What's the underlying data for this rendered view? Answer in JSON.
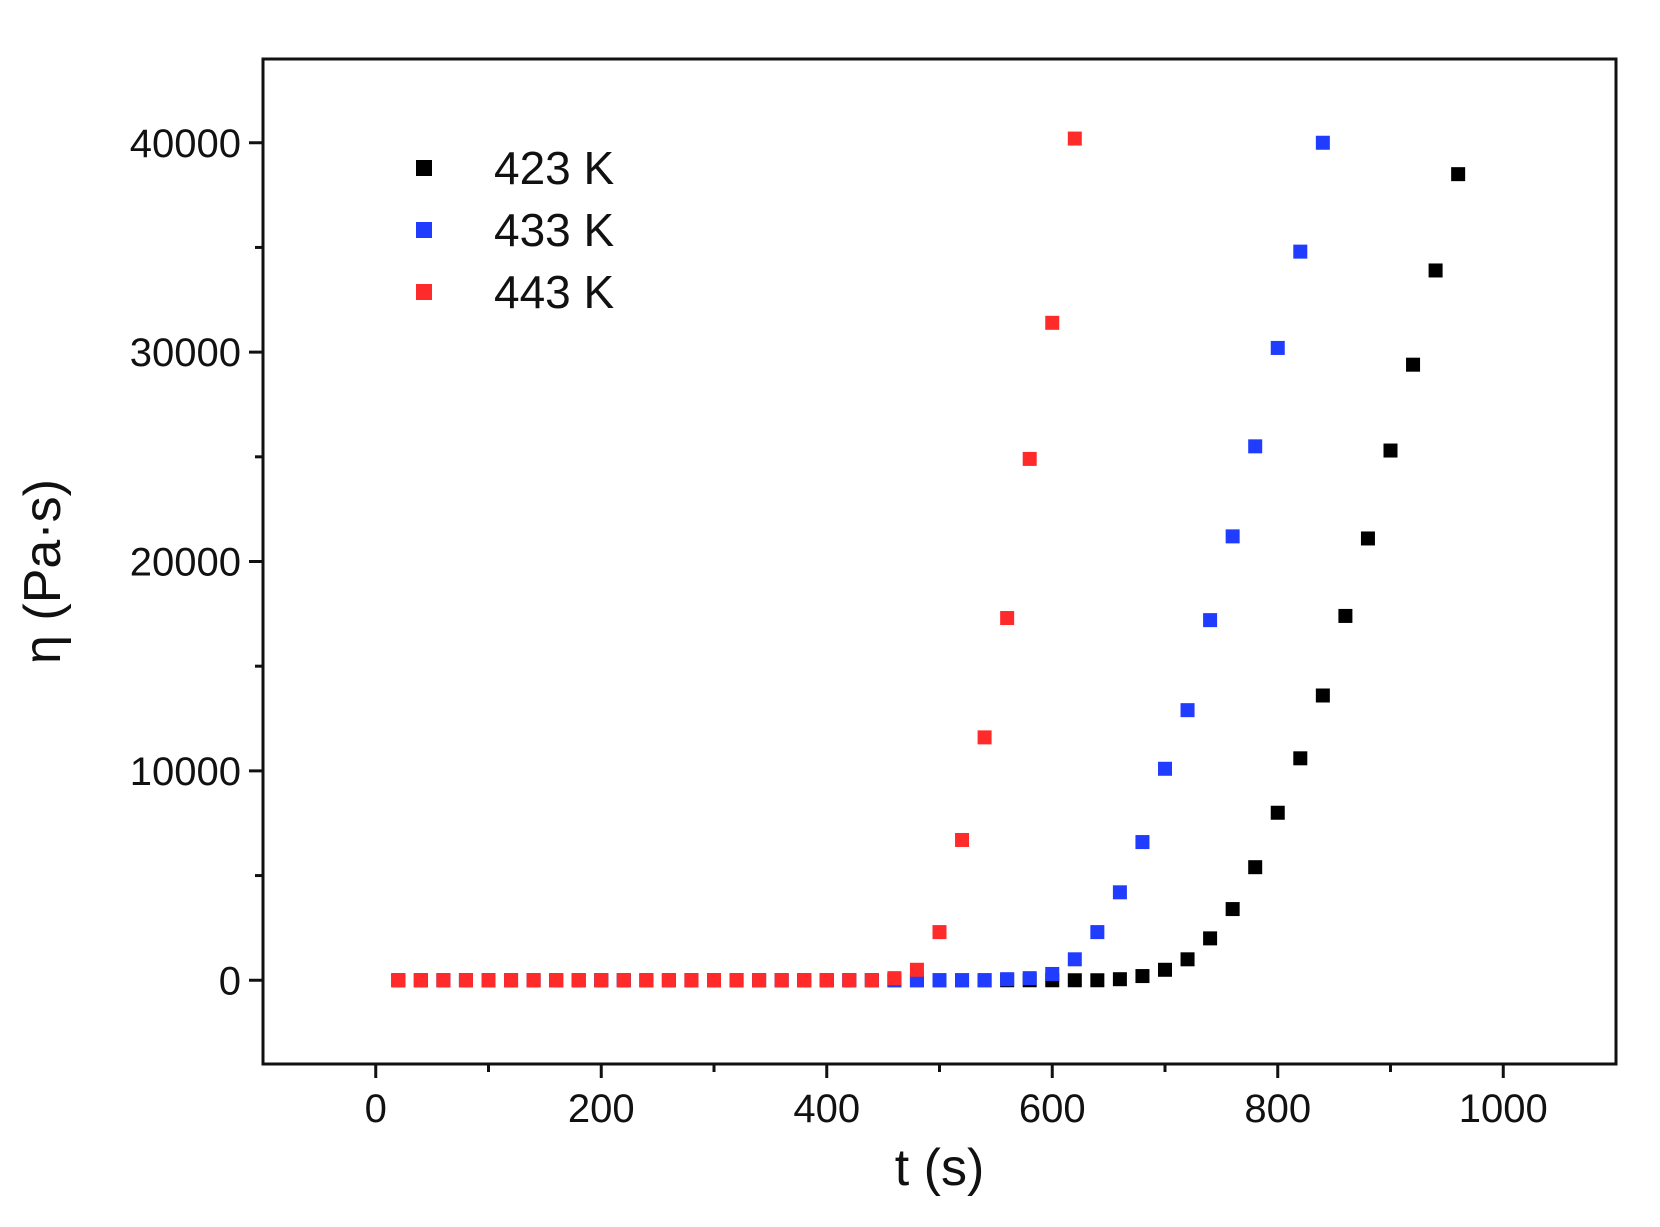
{
  "chart_data": {
    "type": "scatter",
    "title": "",
    "xlabel": "t (s)",
    "ylabel": "η (Pa·s)",
    "xlim": [
      -100,
      1100
    ],
    "ylim": [
      -4000,
      44000
    ],
    "xticks": [
      0,
      200,
      400,
      600,
      800,
      1000
    ],
    "xtick_labels": [
      "0",
      "200",
      "400",
      "600",
      "800",
      "1000"
    ],
    "yticks": [
      0,
      10000,
      20000,
      30000,
      40000
    ],
    "ytick_labels": [
      "0",
      "10000",
      "20000",
      "30000",
      "40000"
    ],
    "x_minor_step": 100,
    "y_minor_step": 5000,
    "grid": false,
    "legend_position": "top-left",
    "series": [
      {
        "name": "423 K",
        "color": "#000000",
        "points": [
          [
            20,
            0
          ],
          [
            40,
            0
          ],
          [
            60,
            0
          ],
          [
            80,
            0
          ],
          [
            100,
            0
          ],
          [
            120,
            0
          ],
          [
            140,
            0
          ],
          [
            160,
            0
          ],
          [
            180,
            0
          ],
          [
            200,
            0
          ],
          [
            220,
            0
          ],
          [
            240,
            0
          ],
          [
            260,
            0
          ],
          [
            280,
            0
          ],
          [
            300,
            0
          ],
          [
            320,
            0
          ],
          [
            340,
            0
          ],
          [
            360,
            0
          ],
          [
            380,
            0
          ],
          [
            400,
            0
          ],
          [
            420,
            0
          ],
          [
            440,
            0
          ],
          [
            460,
            0
          ],
          [
            480,
            0
          ],
          [
            500,
            0
          ],
          [
            520,
            0
          ],
          [
            540,
            0
          ],
          [
            560,
            0
          ],
          [
            580,
            0
          ],
          [
            600,
            0
          ],
          [
            620,
            0
          ],
          [
            640,
            0
          ],
          [
            660,
            50
          ],
          [
            680,
            200
          ],
          [
            700,
            500
          ],
          [
            720,
            1000
          ],
          [
            740,
            2000
          ],
          [
            760,
            3400
          ],
          [
            780,
            5400
          ],
          [
            800,
            8000
          ],
          [
            820,
            10600
          ],
          [
            840,
            13600
          ],
          [
            860,
            17400
          ],
          [
            880,
            21100
          ],
          [
            900,
            25300
          ],
          [
            920,
            29400
          ],
          [
            940,
            33900
          ],
          [
            960,
            38500
          ]
        ]
      },
      {
        "name": "433 K",
        "color": "#1f3cff",
        "points": [
          [
            20,
            0
          ],
          [
            40,
            0
          ],
          [
            60,
            0
          ],
          [
            80,
            0
          ],
          [
            100,
            0
          ],
          [
            120,
            0
          ],
          [
            140,
            0
          ],
          [
            160,
            0
          ],
          [
            180,
            0
          ],
          [
            200,
            0
          ],
          [
            220,
            0
          ],
          [
            240,
            0
          ],
          [
            260,
            0
          ],
          [
            280,
            0
          ],
          [
            300,
            0
          ],
          [
            320,
            0
          ],
          [
            340,
            0
          ],
          [
            360,
            0
          ],
          [
            380,
            0
          ],
          [
            400,
            0
          ],
          [
            420,
            0
          ],
          [
            440,
            0
          ],
          [
            460,
            0
          ],
          [
            480,
            0
          ],
          [
            500,
            0
          ],
          [
            520,
            0
          ],
          [
            540,
            0
          ],
          [
            560,
            50
          ],
          [
            580,
            100
          ],
          [
            600,
            300
          ],
          [
            620,
            1000
          ],
          [
            640,
            2300
          ],
          [
            660,
            4200
          ],
          [
            680,
            6600
          ],
          [
            700,
            10100
          ],
          [
            720,
            12900
          ],
          [
            740,
            17200
          ],
          [
            760,
            21200
          ],
          [
            780,
            25500
          ],
          [
            800,
            30200
          ],
          [
            820,
            34800
          ],
          [
            840,
            40000
          ]
        ]
      },
      {
        "name": "443 K",
        "color": "#ff2b2b",
        "points": [
          [
            20,
            0
          ],
          [
            40,
            0
          ],
          [
            60,
            0
          ],
          [
            80,
            0
          ],
          [
            100,
            0
          ],
          [
            120,
            0
          ],
          [
            140,
            0
          ],
          [
            160,
            0
          ],
          [
            180,
            0
          ],
          [
            200,
            0
          ],
          [
            220,
            0
          ],
          [
            240,
            0
          ],
          [
            260,
            0
          ],
          [
            280,
            0
          ],
          [
            300,
            0
          ],
          [
            320,
            0
          ],
          [
            340,
            0
          ],
          [
            360,
            0
          ],
          [
            380,
            0
          ],
          [
            400,
            0
          ],
          [
            420,
            0
          ],
          [
            440,
            0
          ],
          [
            460,
            100
          ],
          [
            480,
            500
          ],
          [
            500,
            2300
          ],
          [
            520,
            6700
          ],
          [
            540,
            11600
          ],
          [
            560,
            17300
          ],
          [
            580,
            24900
          ],
          [
            600,
            31400
          ],
          [
            620,
            40200
          ]
        ]
      }
    ]
  }
}
